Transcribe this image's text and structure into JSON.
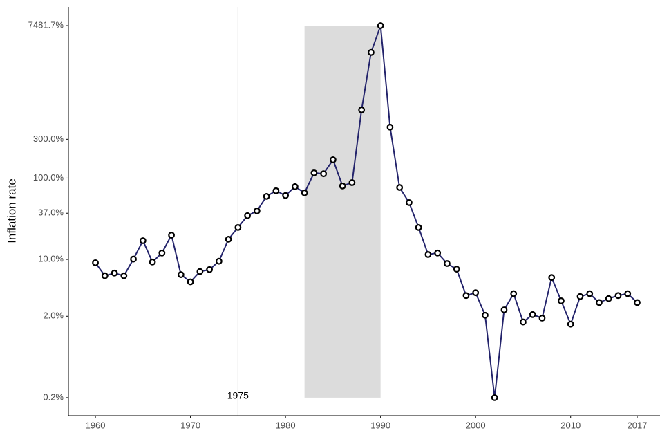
{
  "chart_data": {
    "type": "line",
    "y_label": "Inflation rate",
    "x": [
      1960,
      1961,
      1962,
      1963,
      1964,
      1965,
      1966,
      1967,
      1968,
      1969,
      1970,
      1971,
      1972,
      1973,
      1974,
      1975,
      1976,
      1977,
      1978,
      1979,
      1980,
      1981,
      1982,
      1983,
      1984,
      1985,
      1986,
      1987,
      1988,
      1989,
      1990,
      1991,
      1992,
      1993,
      1994,
      1995,
      1996,
      1997,
      1998,
      1999,
      2000,
      2001,
      2002,
      2003,
      2004,
      2005,
      2006,
      2007,
      2008,
      2009,
      2010,
      2011,
      2012,
      2013,
      2014,
      2015,
      2016,
      2017
    ],
    "values": [
      9.1,
      6.3,
      6.8,
      6.3,
      10.1,
      17.0,
      9.3,
      12.0,
      19.9,
      6.5,
      5.3,
      7.1,
      7.5,
      9.5,
      17.7,
      24.7,
      34.5,
      39.5,
      59.6,
      69.8,
      61,
      78.5,
      65.8,
      116,
      113,
      168,
      80,
      88,
      689,
      3500,
      7481.7,
      423,
      76.7,
      50,
      24.7,
      11.5,
      12.0,
      8.9,
      7.6,
      3.6,
      3.9,
      2.06,
      0.2,
      2.4,
      3.8,
      1.7,
      2.1,
      1.9,
      6.0,
      3.1,
      1.6,
      3.5,
      3.8,
      2.95,
      3.3,
      3.6,
      3.8,
      2.95
    ],
    "color": "#23236b",
    "log_y": true,
    "xlim": [
      1957.16,
      2019.4
    ],
    "ylim": [
      0.12,
      12700
    ],
    "xticks": [
      1960,
      1970,
      1980,
      1990,
      2000,
      2010,
      2017
    ],
    "yticks": [
      {
        "value": 0.2,
        "label": "0.2%"
      },
      {
        "value": 2,
        "label": "2.0%"
      },
      {
        "value": 10,
        "label": "10.0%"
      },
      {
        "value": 37,
        "label": "37.0%"
      },
      {
        "value": 100,
        "label": "100.0%"
      },
      {
        "value": 300,
        "label": "300.0%"
      },
      {
        "value": 7481.7,
        "label": "7481.7%"
      }
    ],
    "shaded_region": {
      "x": [
        1982,
        1990
      ],
      "y": [
        0.2,
        7481.7
      ],
      "color": "#dcdcdc"
    },
    "vline": 1975
  }
}
